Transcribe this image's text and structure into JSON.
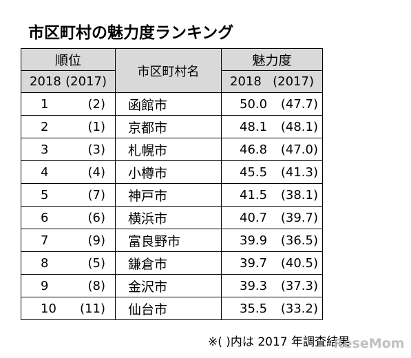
{
  "title": "市区町村の魅力度ランキング",
  "header": {
    "rank_label": "順位",
    "rank_year": "2018",
    "rank_prev": "(2017)",
    "name_label": "市区町村名",
    "score_label": "魅力度",
    "score_year": "2018",
    "score_prev": "(2017)"
  },
  "rows": [
    {
      "rank": "1",
      "prev_rank": "(2)",
      "name": "函館市",
      "score": "50.0",
      "prev_score": "(47.7)"
    },
    {
      "rank": "2",
      "prev_rank": "(1)",
      "name": "京都市",
      "score": "48.1",
      "prev_score": "(48.1)"
    },
    {
      "rank": "3",
      "prev_rank": "(3)",
      "name": "札幌市",
      "score": "46.8",
      "prev_score": "(47.0)"
    },
    {
      "rank": "4",
      "prev_rank": "(4)",
      "name": "小樽市",
      "score": "45.5",
      "prev_score": "(41.3)"
    },
    {
      "rank": "5",
      "prev_rank": "(7)",
      "name": "神戸市",
      "score": "41.5",
      "prev_score": "(38.1)"
    },
    {
      "rank": "6",
      "prev_rank": "(6)",
      "name": "横浜市",
      "score": "40.7",
      "prev_score": "(39.7)"
    },
    {
      "rank": "7",
      "prev_rank": "(9)",
      "name": "富良野市",
      "score": "39.9",
      "prev_score": "(36.5)"
    },
    {
      "rank": "8",
      "prev_rank": "(5)",
      "name": "鎌倉市",
      "score": "39.7",
      "prev_score": "(40.5)"
    },
    {
      "rank": "9",
      "prev_rank": "(8)",
      "name": "金沢市",
      "score": "39.3",
      "prev_score": "(37.3)"
    },
    {
      "rank": "10",
      "prev_rank": "(11)",
      "name": "仙台市",
      "score": "35.5",
      "prev_score": "(33.2)"
    }
  ],
  "footnote": "※( )内は 2017 年調査結果",
  "watermark": "ReseMom"
}
